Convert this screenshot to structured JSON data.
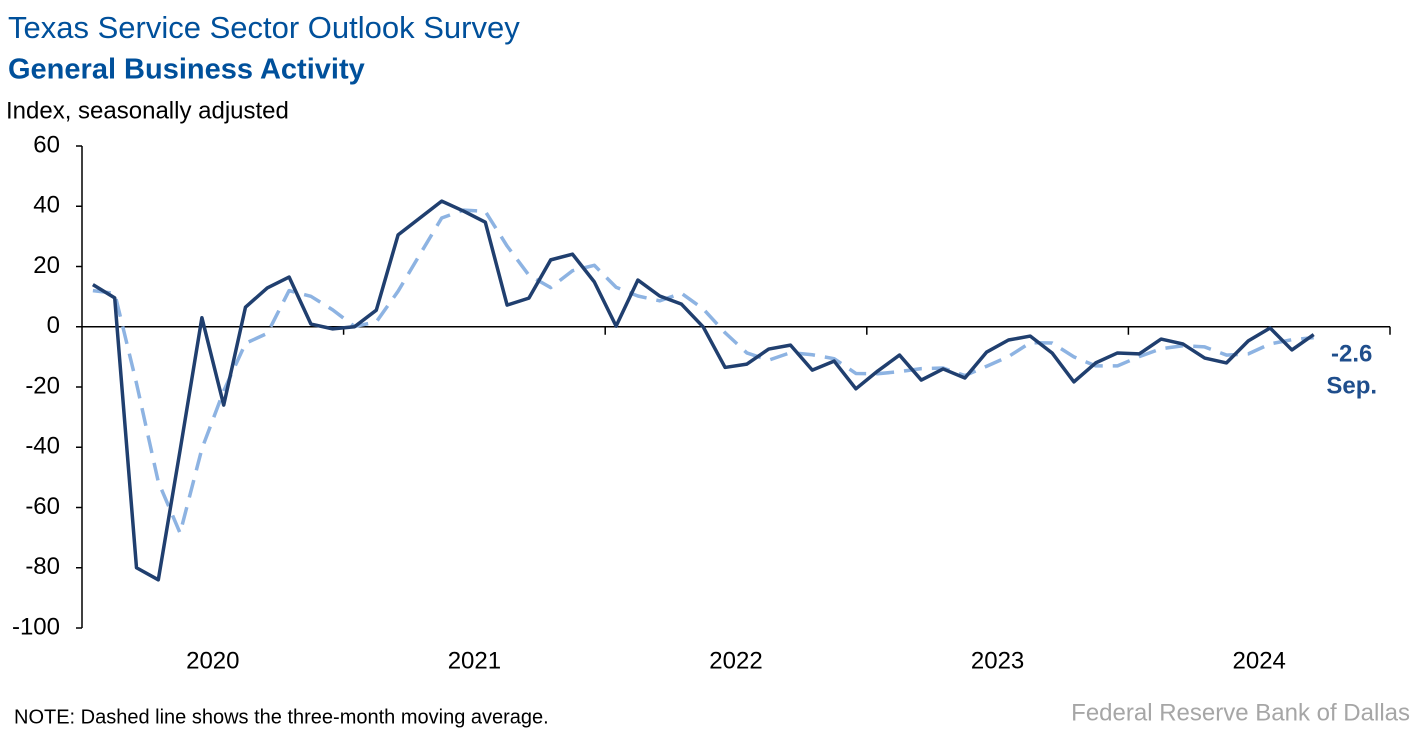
{
  "chart_data": {
    "type": "line",
    "title": "Texas Service Sector Outlook Survey",
    "subtitle": "General Business Activity",
    "y_axis_label": "Index, seasonally adjusted",
    "note": "NOTE: Dashed line shows the three-month moving average.",
    "source": "Federal Reserve Bank of Dallas",
    "x_axis_labels": [
      "2020",
      "2021",
      "2022",
      "2023",
      "2024"
    ],
    "categories": [
      null,
      null,
      null,
      null,
      null,
      null,
      null,
      null,
      null,
      null,
      null,
      null,
      null,
      null,
      null,
      null,
      null,
      null,
      null,
      null,
      null,
      null,
      null,
      null,
      null,
      null,
      null,
      null,
      null,
      null,
      null,
      null,
      null,
      null,
      null,
      null,
      null,
      null,
      null,
      null,
      null,
      null,
      null,
      null,
      null,
      null,
      null,
      null,
      null,
      null,
      null,
      null,
      null,
      null,
      null,
      null,
      null
    ],
    "ylim": [
      -100,
      60
    ],
    "yticks": [
      -100,
      -80,
      -60,
      -40,
      -20,
      0,
      20,
      40,
      60
    ],
    "series": [
      {
        "color": "#203f6f",
        "dash": false,
        "values": [
          14,
          9.6,
          -80,
          -84,
          -41,
          3,
          -26,
          6.5,
          12.9,
          16.5,
          0.9,
          -0.7,
          0,
          5.5,
          30.5,
          36.1,
          41.7,
          38.4,
          34.7,
          7.2,
          9.5,
          22.2,
          24.1,
          14.9,
          0.2,
          15.5,
          10.2,
          7.5,
          -0.1,
          -13.5,
          -12.4,
          -7.4,
          -6.1,
          -14.4,
          -11.4,
          -20.6,
          -14.7,
          -9.4,
          -17.7,
          -14.0,
          -17.0,
          -8.4,
          -4.4,
          -3.1,
          -8.7,
          -18.3,
          -12.0,
          -8.7,
          -9.0,
          -4.1,
          -5.7,
          -10.4,
          -12.0,
          -4.7,
          -0.4,
          -7.7,
          -2.6
        ],
        "value_labels": [
          null,
          null,
          null,
          null,
          null,
          null,
          null,
          null,
          null,
          null,
          null,
          null,
          null,
          null,
          null,
          null,
          null,
          null,
          null,
          null,
          null,
          null,
          null,
          null,
          null,
          null,
          null,
          null,
          null,
          null,
          null,
          null,
          null,
          null,
          null,
          null,
          null,
          null,
          null,
          null,
          null,
          null,
          null,
          null,
          null,
          null,
          null,
          null,
          null,
          null,
          null,
          null,
          null,
          null,
          null,
          null,
          "-2.6"
        ]
      },
      {
        "color": "#8db3e2",
        "dash": true,
        "values": [
          12,
          11.1,
          -18.8,
          -51.5,
          -68.5,
          -40.5,
          -21.3,
          -5.5,
          -2.2,
          12,
          10.1,
          5.6,
          0.1,
          1.6,
          11.8,
          24,
          36.1,
          38.7,
          38.3,
          26.8,
          17.1,
          13,
          18.6,
          20.4,
          13.1,
          10.2,
          8.6,
          11.1,
          5.9,
          -2.0,
          -8.7,
          -11.1,
          -8.6,
          -9.3,
          -10.6,
          -15.5,
          -15.6,
          -14.9,
          -13.9,
          -13.7,
          -16.2,
          -13.1,
          -9.9,
          -5.3,
          -5.4,
          -10.0,
          -13.0,
          -13.0,
          -9.9,
          -7.3,
          -6.3,
          -6.7,
          -9.4,
          -9.0,
          -5.7,
          -4.3,
          -3.6
        ]
      }
    ],
    "annotation": "Sep."
  }
}
